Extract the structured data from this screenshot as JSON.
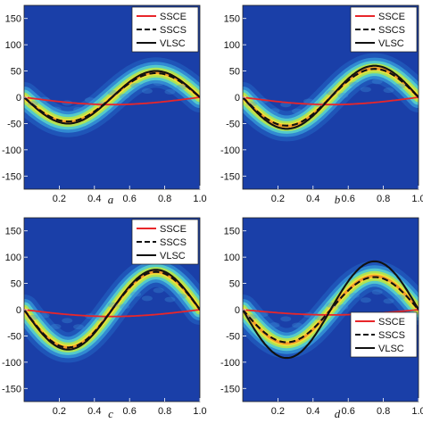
{
  "colors": {
    "background": "#1a3fa8",
    "SSCE": "#e8262a",
    "SSCS": "#111111",
    "VLSC": "#111111"
  },
  "chart_data": [
    {
      "panel": "a",
      "type": "line",
      "colormap": "jet",
      "ylim": [
        175,
        -175
      ],
      "xlim": [
        0,
        1.0
      ],
      "x_ticks": [
        "0.2",
        "0.4",
        "0.6",
        "0.8",
        "1.0"
      ],
      "y_ticks": [
        "-150",
        "-100",
        "-50",
        "0",
        "50",
        "100",
        "150"
      ],
      "legend": {
        "position": "top-right",
        "entries": [
          "SSCE",
          "SSCS",
          "VLSC"
        ]
      },
      "series": [
        {
          "name": "SSCE",
          "style": "solid-red",
          "amplitude": -14,
          "shape": "sine-half"
        },
        {
          "name": "SSCS",
          "style": "dashed-black",
          "amplitude": 46,
          "shape": "sine-full"
        },
        {
          "name": "VLSC",
          "style": "solid-black",
          "amplitude": 50,
          "shape": "sine-full"
        }
      ],
      "heat_amplitude": 47
    },
    {
      "panel": "b",
      "type": "line",
      "colormap": "jet",
      "ylim": [
        175,
        -175
      ],
      "xlim": [
        0,
        1.0
      ],
      "x_ticks": [
        "0.2",
        "0.4",
        "0.6",
        "0.8",
        "1.0"
      ],
      "y_ticks": [
        "-150",
        "-100",
        "-50",
        "0",
        "50",
        "100",
        "150"
      ],
      "legend": {
        "position": "top-right",
        "entries": [
          "SSCE",
          "SSCS",
          "VLSC"
        ]
      },
      "series": [
        {
          "name": "SSCE",
          "style": "solid-red",
          "amplitude": -14,
          "shape": "sine-half"
        },
        {
          "name": "SSCS",
          "style": "dashed-black",
          "amplitude": 54,
          "shape": "sine-full"
        },
        {
          "name": "VLSC",
          "style": "solid-black",
          "amplitude": 60,
          "shape": "sine-full"
        }
      ],
      "heat_amplitude": 55
    },
    {
      "panel": "c",
      "type": "line",
      "colormap": "jet",
      "ylim": [
        175,
        -175
      ],
      "xlim": [
        0,
        1.0
      ],
      "x_ticks": [
        "0.2",
        "0.4",
        "0.6",
        "0.8",
        "1.0"
      ],
      "y_ticks": [
        "-150",
        "-100",
        "-50",
        "0",
        "50",
        "100",
        "150"
      ],
      "legend": {
        "position": "top-right",
        "entries": [
          "SSCE",
          "SSCS",
          "VLSC"
        ]
      },
      "series": [
        {
          "name": "SSCE",
          "style": "solid-red",
          "amplitude": -13,
          "shape": "sine-half"
        },
        {
          "name": "SSCS",
          "style": "dashed-black",
          "amplitude": 72,
          "shape": "sine-full"
        },
        {
          "name": "VLSC",
          "style": "solid-black",
          "amplitude": 76,
          "shape": "sine-full"
        }
      ],
      "heat_amplitude": 72
    },
    {
      "panel": "d",
      "type": "line",
      "colormap": "jet",
      "ylim": [
        175,
        -175
      ],
      "xlim": [
        0,
        1.0
      ],
      "x_ticks": [
        "0.2",
        "0.4",
        "0.6",
        "0.8",
        "1.0"
      ],
      "y_ticks": [
        "-150",
        "-100",
        "-50",
        "0",
        "50",
        "100",
        "150"
      ],
      "legend": {
        "position": "bottom-right",
        "entries": [
          "SSCE",
          "SSCS",
          "VLSC"
        ]
      },
      "series": [
        {
          "name": "SSCE",
          "style": "solid-red",
          "amplitude": -10,
          "shape": "sine-half"
        },
        {
          "name": "SSCS",
          "style": "dashed-black",
          "amplitude": 62,
          "shape": "sine-full"
        },
        {
          "name": "VLSC",
          "style": "solid-black",
          "amplitude": 92,
          "shape": "sine-full"
        }
      ],
      "heat_amplitude": 64
    }
  ]
}
